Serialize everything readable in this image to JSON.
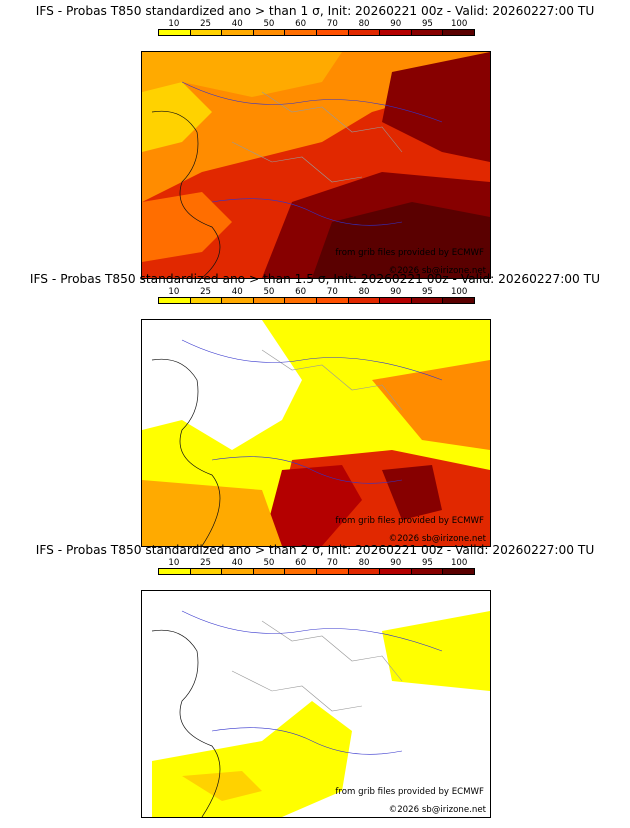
{
  "panels": [
    {
      "title": "IFS - Probas T850  standardized ano > than 1 σ, Init: 20260221 00z - Valid: 20260227:00 TU"
    },
    {
      "title": "IFS - Probas T850  standardized ano > than 1.5 σ, Init: 20260221 00z - Valid: 20260227:00 TU"
    },
    {
      "title": "IFS - Probas T850  standardized ano > than 2 σ, Init: 20260221 00z - Valid: 20260227:00 TU"
    }
  ],
  "colorbar": {
    "labels": [
      "10",
      "25",
      "40",
      "50",
      "60",
      "70",
      "80",
      "90",
      "95",
      "100"
    ],
    "colors": [
      "#ffff00",
      "#ffd200",
      "#ffaa00",
      "#ff8c00",
      "#ff6e00",
      "#ff5000",
      "#e12800",
      "#b40000",
      "#870000",
      "#5a0000"
    ]
  },
  "credits": {
    "source": "from grib files provided by ECMWF",
    "copyright": "©2026 sb@irizone.net"
  }
}
